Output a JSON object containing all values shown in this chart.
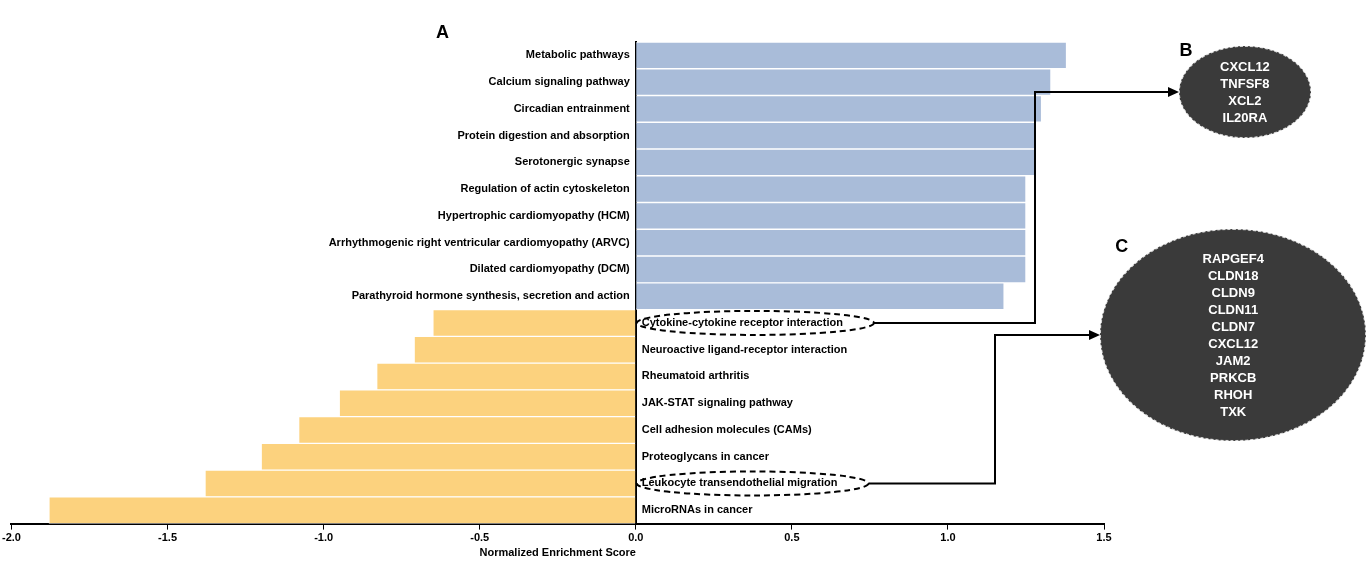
{
  "chart_data": {
    "type": "bar",
    "orientation": "horizontal",
    "xlabel": "Normalized Enrichment Score",
    "categories": [
      "Metabolic pathways",
      "Calcium signaling pathway",
      "Circadian entrainment",
      "Protein digestion and absorption",
      "Serotonergic synapse",
      "Regulation of actin cytoskeleton",
      "Hypertrophic cardiomyopathy (HCM)",
      "Arrhythmogenic right ventricular cardiomyopathy (ARVC)",
      "Dilated cardiomyopathy (DCM)",
      "Parathyroid hormone synthesis, secretion and action",
      "Cytokine-cytokine receptor interaction",
      "Neuroactive ligand-receptor interaction",
      "Rheumatoid arthritis",
      "JAK-STAT signaling pathway",
      "Cell adhesion molecules (CAMs)",
      "Proteoglycans in cancer",
      "Leukocyte transendothelial migration",
      "MicroRNAs in cancer"
    ],
    "values": [
      1.38,
      1.33,
      1.3,
      1.28,
      1.28,
      1.25,
      1.25,
      1.25,
      1.25,
      1.18,
      -0.65,
      -0.71,
      -0.83,
      -0.95,
      -1.08,
      -1.2,
      -1.38,
      -1.88
    ],
    "colors": [
      "#a9bcd9",
      "#a9bcd9",
      "#a9bcd9",
      "#a9bcd9",
      "#a9bcd9",
      "#a9bcd9",
      "#a9bcd9",
      "#a9bcd9",
      "#a9bcd9",
      "#a9bcd9",
      "#fcd27e",
      "#fcd27e",
      "#fcd27e",
      "#fcd27e",
      "#fcd27e",
      "#fcd27e",
      "#fcd27e",
      "#fcd27e"
    ],
    "xlim": [
      -2,
      1.5
    ],
    "xticks": [
      {
        "value": -2,
        "label": "-2.0"
      },
      {
        "value": -1.5,
        "label": "-1.5"
      },
      {
        "value": -1,
        "label": "-1.0"
      },
      {
        "value": -0.5,
        "label": "-0.5"
      },
      {
        "value": 0,
        "label": "0.0"
      },
      {
        "value": 0.5,
        "label": "0.5"
      },
      {
        "value": 1,
        "label": "1.0"
      },
      {
        "value": 1.5,
        "label": "1.5"
      }
    ],
    "grid": false,
    "annotations": [
      "A",
      "B",
      "CXCL12\nTNFSF8\nXCL2\nIL20RA",
      "C",
      "RAPGEF4\nCLDN18\nCLDN9\nCLDN11\nCLDN7\nCXCL12\nJAM2\nPRKCB\nRHOH\nTXK"
    ]
  }
}
